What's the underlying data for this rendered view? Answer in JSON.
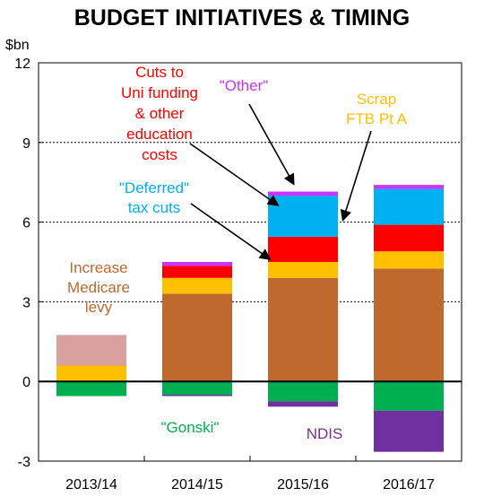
{
  "chart_data": {
    "type": "bar",
    "title": "BUDGET INITIATIVES & TIMING",
    "ylabel": "$bn",
    "ylim": [
      -3,
      12
    ],
    "yticks": [
      12,
      9,
      6,
      3,
      0,
      -3
    ],
    "grid": "dashed horizontal at 3, 6, 9",
    "categories": [
      "2013/14",
      "2014/15",
      "2015/16",
      "2016/17"
    ],
    "stacked": true,
    "series": [
      {
        "key": "medicare",
        "color": "#C0692E",
        "values": [
          0.0,
          3.3,
          3.9,
          4.25
        ]
      },
      {
        "key": "ftb",
        "color": "#FFC000",
        "values": [
          0.6,
          0.6,
          0.6,
          0.65
        ]
      },
      {
        "key": "uni",
        "color": "#FF0000",
        "values": [
          0.15,
          0.45,
          0.95,
          1.0
        ]
      },
      {
        "key": "deferred",
        "color": "#00B0F0",
        "values": [
          0.0,
          0.0,
          1.55,
          1.35
        ]
      },
      {
        "key": "other",
        "color": "#CC33FF",
        "values": [
          0.0,
          0.15,
          0.15,
          0.15
        ]
      },
      {
        "key": "gonski",
        "color": "#00B050",
        "values": [
          -0.55,
          -0.5,
          -0.75,
          -1.1
        ]
      },
      {
        "key": "ndis",
        "color": "#7030A0",
        "values": [
          0.0,
          -0.05,
          -0.2,
          -1.55
        ]
      }
    ],
    "stack_order_positive": [
      "medicare",
      "ftb",
      "uni",
      "deferred",
      "other"
    ],
    "stack_order_negative": [
      "gonski",
      "ndis"
    ],
    "shaded_2013_14": {
      "bottom": 0.6,
      "top": 1.75,
      "color": "#D9A0A0"
    },
    "annotations": {
      "uni": [
        "Cuts to",
        "Uni funding",
        "& other",
        "education",
        "costs"
      ],
      "other": [
        "\"Other\""
      ],
      "ftb": [
        "Scrap",
        "FTB Pt A"
      ],
      "deferred": [
        "\"Deferred\"",
        "tax cuts"
      ],
      "medicare": [
        "Increase",
        "Medicare",
        "levy"
      ],
      "gonski": [
        "\"Gonski\""
      ],
      "ndis": [
        "NDIS"
      ]
    }
  }
}
